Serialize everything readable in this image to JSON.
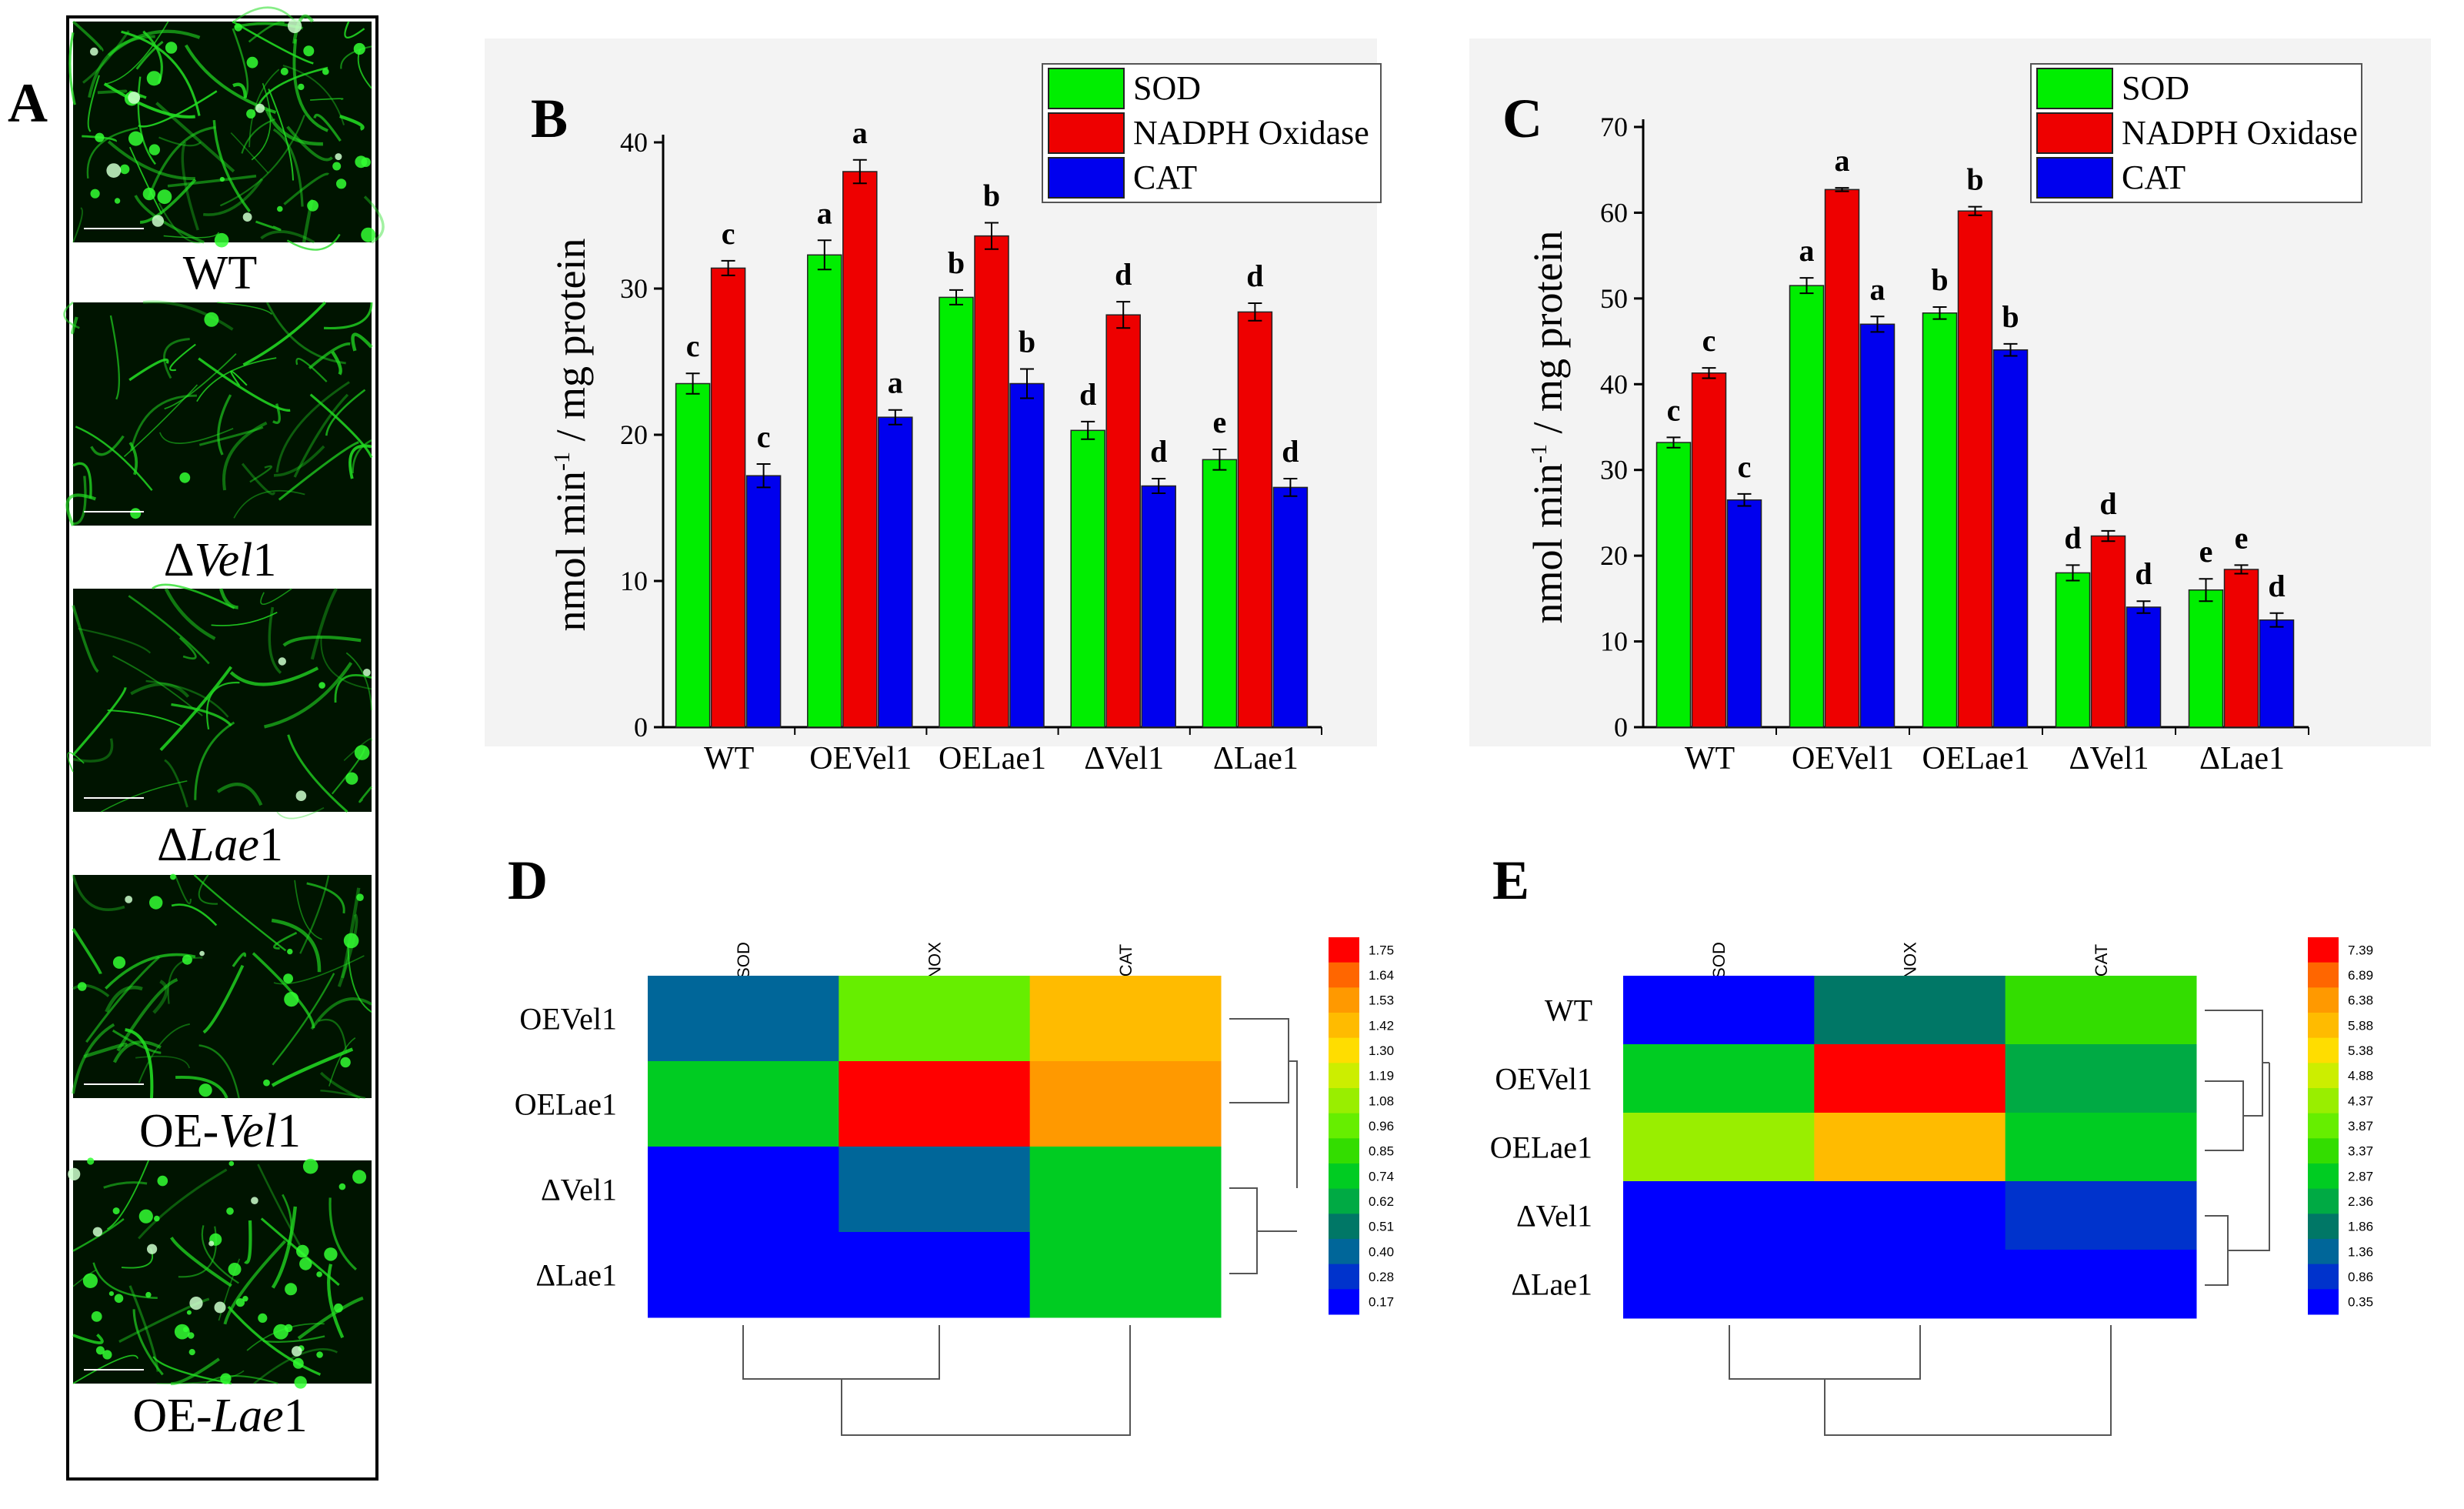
{
  "panel_a": {
    "letter": "A",
    "images": [
      {
        "prefix": "WT",
        "italic": "",
        "suffix": "",
        "density": 0.9,
        "dots": 0.6
      },
      {
        "prefix": "Δ",
        "italic": "Vel",
        "suffix": "1",
        "density": 0.5,
        "dots": 0.05
      },
      {
        "prefix": "Δ",
        "italic": "Lae",
        "suffix": "1",
        "density": 0.35,
        "dots": 0.1
      },
      {
        "prefix": "OE-",
        "italic": "Vel",
        "suffix": "1",
        "density": 0.45,
        "dots": 0.25
      },
      {
        "prefix": "OE-",
        "italic": "Lae",
        "suffix": "1",
        "density": 0.3,
        "dots": 0.8
      }
    ]
  },
  "colors": {
    "SOD": "#00ee00",
    "NADPH Oxidase": "#ee0000",
    "CAT": "#0000ee",
    "panel_a_bg": "#001400",
    "hyphae": "#22dd22",
    "plot_bg": "#f3f3f3"
  },
  "chart_data": [
    {
      "panel": "B",
      "type": "bar",
      "categories": [
        "WT",
        "OEVel1",
        "OELae1",
        "ΔVel1",
        "ΔLae1"
      ],
      "ylabel_main": "nmol min",
      "ylabel_sup": "-1",
      "ylabel_rest": " / mg protein",
      "ylim": [
        0,
        40
      ],
      "yticks": [
        0,
        10,
        20,
        30,
        40
      ],
      "legend": [
        "SOD",
        "NADPH Oxidase",
        "CAT"
      ],
      "series": [
        {
          "name": "SOD",
          "values": [
            23.5,
            32.3,
            29.4,
            20.3,
            18.3
          ],
          "errors": [
            0.7,
            1.0,
            0.5,
            0.6,
            0.7
          ],
          "letters": [
            "c",
            "a",
            "b",
            "d",
            "e"
          ]
        },
        {
          "name": "NADPH Oxidase",
          "values": [
            31.4,
            38.0,
            33.6,
            28.2,
            28.4
          ],
          "errors": [
            0.5,
            0.8,
            0.9,
            0.9,
            0.6
          ],
          "letters": [
            "c",
            "a",
            "b",
            "d",
            "d"
          ]
        },
        {
          "name": "CAT",
          "values": [
            17.2,
            21.2,
            23.5,
            16.5,
            16.4
          ],
          "errors": [
            0.8,
            0.5,
            1.0,
            0.5,
            0.6
          ],
          "letters": [
            "c",
            "a",
            "b",
            "d",
            "d"
          ]
        }
      ]
    },
    {
      "panel": "C",
      "type": "bar",
      "categories": [
        "WT",
        "OEVel1",
        "OELae1",
        "ΔVel1",
        "ΔLae1"
      ],
      "ylabel_main": "nmol min",
      "ylabel_sup": "-1",
      "ylabel_rest": " / mg protein",
      "ylim": [
        0,
        70
      ],
      "yticks": [
        0,
        10,
        20,
        30,
        40,
        50,
        60,
        70
      ],
      "legend": [
        "SOD",
        "NADPH Oxidase",
        "CAT"
      ],
      "series": [
        {
          "name": "SOD",
          "values": [
            33.2,
            51.5,
            48.3,
            18.0,
            16.0
          ],
          "errors": [
            0.6,
            0.9,
            0.7,
            0.9,
            1.3
          ],
          "letters": [
            "c",
            "a",
            "b",
            "d",
            "e"
          ]
        },
        {
          "name": "NADPH Oxidase",
          "values": [
            41.3,
            62.7,
            60.2,
            22.3,
            18.4
          ],
          "errors": [
            0.6,
            0.2,
            0.5,
            0.6,
            0.5
          ],
          "letters": [
            "c",
            "a",
            "b",
            "d",
            "e"
          ]
        },
        {
          "name": "CAT",
          "values": [
            26.5,
            47.0,
            44.0,
            14.0,
            12.5
          ],
          "errors": [
            0.7,
            0.9,
            0.7,
            0.7,
            0.8
          ],
          "letters": [
            "c",
            "a",
            "b",
            "d",
            "d"
          ]
        }
      ]
    },
    {
      "panel": "D",
      "type": "heatmap",
      "columns": [
        "SOD",
        "NOX",
        "CAT"
      ],
      "rows": [
        "OEVel1",
        "OELae1",
        "ΔVel1",
        "ΔLae1"
      ],
      "values": [
        [
          0.45,
          0.96,
          1.35
        ],
        [
          0.78,
          1.75,
          1.48
        ],
        [
          0.17,
          0.45,
          0.72
        ],
        [
          0.17,
          0.17,
          0.72
        ]
      ],
      "scale": [
        "1.75",
        "1.64",
        "1.53",
        "1.42",
        "1.30",
        "1.19",
        "1.08",
        "0.96",
        "0.85",
        "0.74",
        "0.62",
        "0.51",
        "0.40",
        "0.28",
        "0.17"
      ]
    },
    {
      "panel": "E",
      "type": "heatmap",
      "columns": [
        "SOD",
        "NOX",
        "CAT"
      ],
      "rows": [
        "WT",
        "OEVel1",
        "OELae1",
        "ΔVel1",
        "ΔLae1"
      ],
      "values": [
        [
          0.6,
          2.2,
          3.2
        ],
        [
          2.8,
          7.39,
          2.36
        ],
        [
          4.2,
          5.8,
          2.9
        ],
        [
          0.35,
          0.35,
          1.1
        ],
        [
          0.35,
          0.35,
          0.35
        ]
      ],
      "scale": [
        "7.39",
        "6.89",
        "6.38",
        "5.88",
        "5.38",
        "4.88",
        "4.37",
        "3.87",
        "3.37",
        "2.87",
        "2.36",
        "1.86",
        "1.36",
        "0.86",
        "0.35"
      ]
    }
  ]
}
